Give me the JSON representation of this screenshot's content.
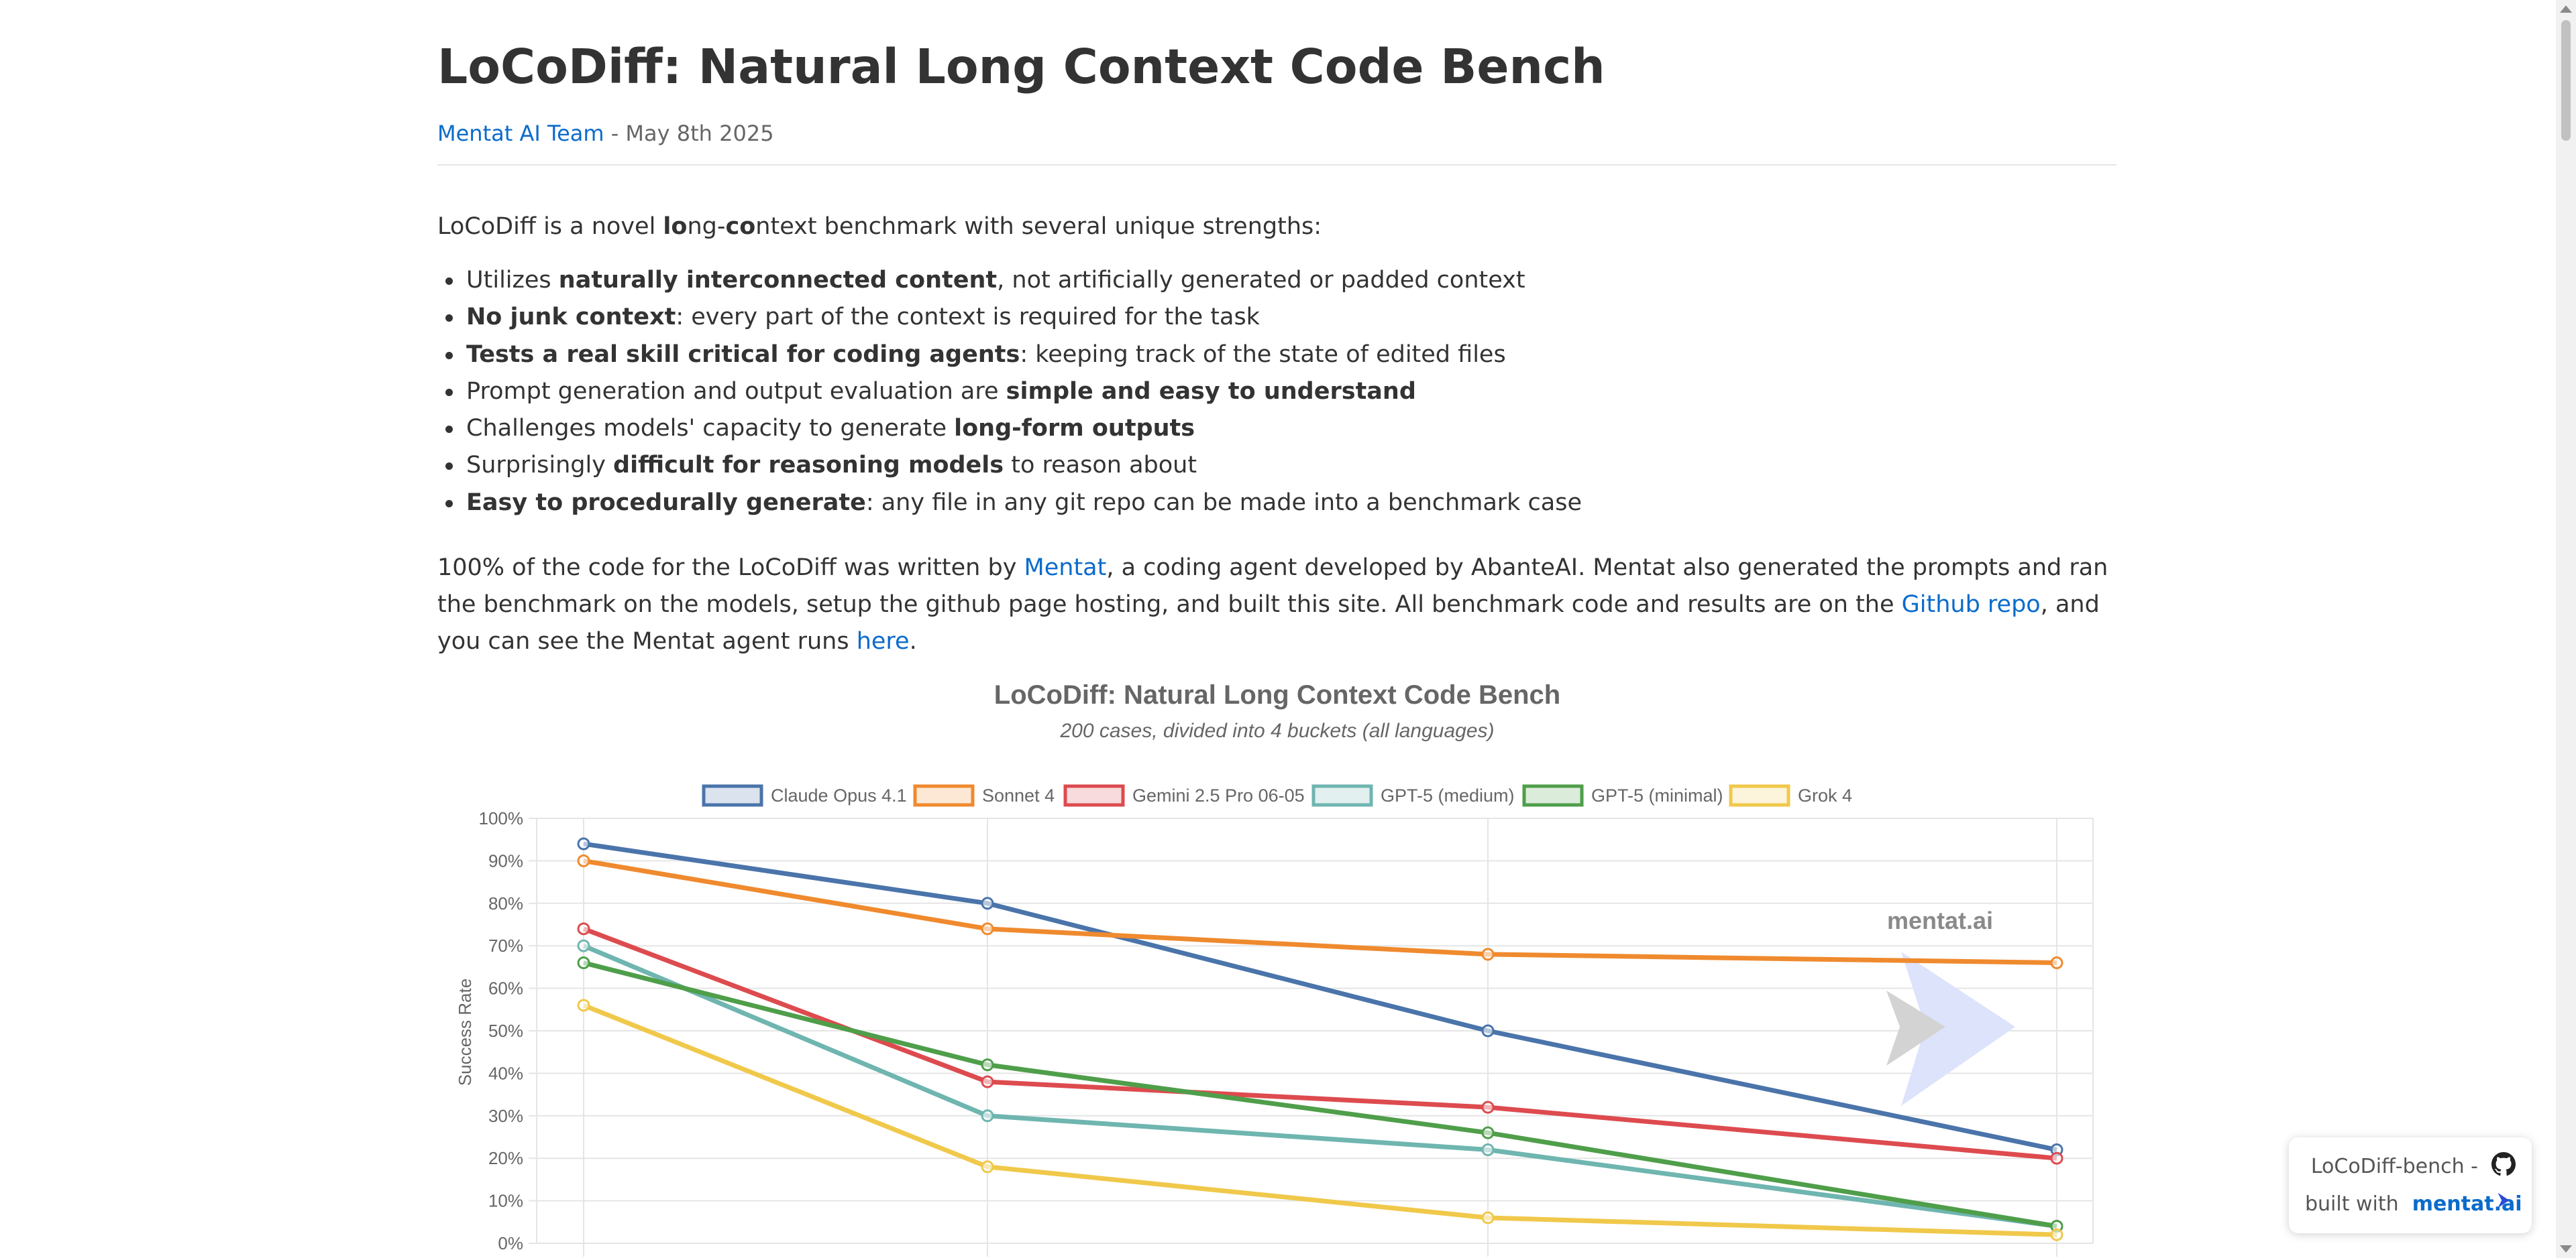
{
  "header": {
    "title": "LoCoDiff: Natural Long Context Code Bench",
    "author_link": "Mentat AI Team",
    "date": " - May 8th 2025"
  },
  "intro": {
    "text_pre": "LoCoDiff is a novel ",
    "bold1": "lo",
    "mid": "ng-",
    "bold2": "co",
    "text_post": "ntext benchmark with several unique strengths:"
  },
  "features": [
    {
      "pre": "Utilizes ",
      "bold": "naturally interconnected content",
      "post": ", not artificially generated or padded context"
    },
    {
      "pre": "",
      "bold": "No junk context",
      "post": ": every part of the context is required for the task"
    },
    {
      "pre": "",
      "bold": "Tests a real skill critical for coding agents",
      "post": ": keeping track of the state of edited files"
    },
    {
      "pre": "Prompt generation and output evaluation are ",
      "bold": "simple and easy to understand",
      "post": ""
    },
    {
      "pre": "Challenges models' capacity to generate ",
      "bold": "long-form outputs",
      "post": ""
    },
    {
      "pre": "Surprisingly ",
      "bold": "difficult for reasoning models",
      "post": " to reason about"
    },
    {
      "pre": "",
      "bold": "Easy to procedurally generate",
      "post": ": any file in any git repo can be made into a benchmark case"
    }
  ],
  "para": {
    "t1": "100% of the code for the LoCoDiff was written by ",
    "link1": "Mentat",
    "t2": ", a coding agent developed by AbanteAI. Mentat also generated the prompts and ran the benchmark on the models, setup the github page hosting, and built this site. All benchmark code and results are on the ",
    "link2": "Github repo",
    "t3": ", and you can see the Mentat agent runs ",
    "link3": "here",
    "t4": "."
  },
  "chart_data": {
    "type": "line",
    "title": "LoCoDiff: Natural Long Context Code Bench",
    "subtitle": "200 cases, divided into 4 buckets (all languages)",
    "ylabel": "Success Rate",
    "ylim": [
      0,
      100
    ],
    "yticks": [
      "0%",
      "10%",
      "20%",
      "30%",
      "40%",
      "50%",
      "60%",
      "70%",
      "80%",
      "90%",
      "100%"
    ],
    "grid": true,
    "legend_position": "top",
    "watermark": "mentat.ai",
    "series": [
      {
        "name": "Claude Opus 4.1",
        "color": "#4a74aa",
        "values": [
          94,
          80,
          50,
          22
        ]
      },
      {
        "name": "Sonnet 4",
        "color": "#ef8a2e",
        "values": [
          90,
          74,
          68,
          66
        ]
      },
      {
        "name": "Gemini 2.5 Pro 06-05",
        "color": "#dd4b4f",
        "values": [
          74,
          38,
          32,
          20
        ]
      },
      {
        "name": "GPT-5 (medium)",
        "color": "#6fb5b0",
        "values": [
          70,
          30,
          22,
          4
        ]
      },
      {
        "name": "GPT-5 (minimal)",
        "color": "#4f9e4a",
        "values": [
          66,
          42,
          26,
          4
        ]
      },
      {
        "name": "Grok 4",
        "color": "#f0c84a",
        "values": [
          56,
          18,
          6,
          2
        ]
      }
    ]
  },
  "badge": {
    "line1": "LoCoDiff-bench -",
    "line2": "built with",
    "link": "mentat.ai"
  }
}
